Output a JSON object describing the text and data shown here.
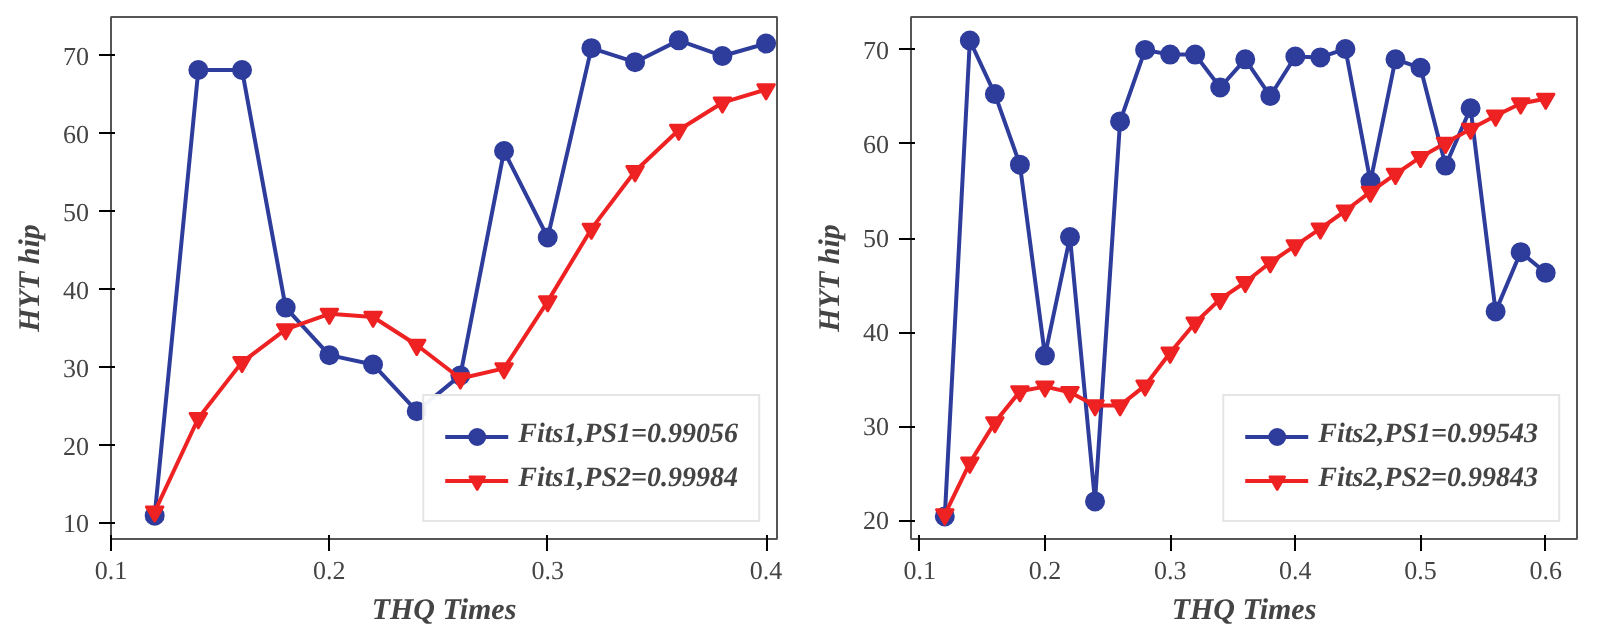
{
  "chart_data": [
    {
      "type": "line",
      "xlabel": "THQ Times",
      "ylabel": "HYT hip",
      "xlim": [
        0.1,
        0.405
      ],
      "ylim": [
        8,
        75
      ],
      "xticks": [
        0.1,
        0.2,
        0.3,
        0.4
      ],
      "yticks": [
        10,
        20,
        30,
        40,
        50,
        60,
        70
      ],
      "grid": false,
      "legend": "bottom right",
      "x": [
        0.12,
        0.14,
        0.16,
        0.18,
        0.2,
        0.22,
        0.24,
        0.26,
        0.28,
        0.3,
        0.32,
        0.34,
        0.36,
        0.38,
        0.4
      ],
      "series": [
        {
          "name": "Fits1,PS1=0.99056",
          "color": "#2e3d9c",
          "marker": "circle",
          "values": [
            11,
            68.2,
            68.2,
            37.7,
            31.6,
            30.4,
            24.4,
            29,
            57.8,
            46.7,
            71,
            69.2,
            72,
            70,
            71.6
          ]
        },
        {
          "name": "Fits1,PS2=0.99984",
          "color": "#ee2222",
          "marker": "triangle",
          "values": [
            11.5,
            23.5,
            30.7,
            34.9,
            36.9,
            36.5,
            32.9,
            28.6,
            29.9,
            38.5,
            47.8,
            55.2,
            60.5,
            64,
            65.7
          ]
        }
      ]
    },
    {
      "type": "line",
      "xlabel": "THQ Times",
      "ylabel": "HYT hip",
      "xlim": [
        0.093,
        0.625
      ],
      "ylim": [
        18,
        73.5
      ],
      "xticks": [
        0.1,
        0.2,
        0.3,
        0.4,
        0.5,
        0.6
      ],
      "yticks": [
        20,
        30,
        40,
        50,
        60,
        70
      ],
      "grid": false,
      "legend": "bottom right",
      "x": [
        0.12,
        0.14,
        0.16,
        0.18,
        0.2,
        0.22,
        0.24,
        0.26,
        0.28,
        0.3,
        0.32,
        0.34,
        0.36,
        0.38,
        0.4,
        0.42,
        0.44,
        0.46,
        0.48,
        0.5,
        0.52,
        0.54,
        0.56,
        0.58,
        0.6
      ],
      "series": [
        {
          "name": "Fits2,PS1=0.99543",
          "color": "#2e3d9c",
          "marker": "circle",
          "values": [
            20.4,
            71,
            65.3,
            57.8,
            37.5,
            50.1,
            22,
            62.4,
            70,
            69.5,
            69.5,
            66,
            69,
            65.1,
            69.3,
            69.2,
            70.1,
            56,
            69,
            68.1,
            57.7,
            63.8,
            42.2,
            48.5,
            46.3
          ]
        },
        {
          "name": "Fits2,PS2=0.99843",
          "color": "#ee2222",
          "marker": "triangle",
          "values": [
            20.6,
            26.1,
            30.4,
            33.7,
            34.2,
            33.6,
            32.2,
            32.2,
            34.3,
            37.8,
            41,
            43.5,
            45.3,
            47.4,
            49.2,
            51,
            52.9,
            54.9,
            56.8,
            58.6,
            60.1,
            61.6,
            63,
            64.3,
            64.8
          ]
        }
      ]
    }
  ]
}
